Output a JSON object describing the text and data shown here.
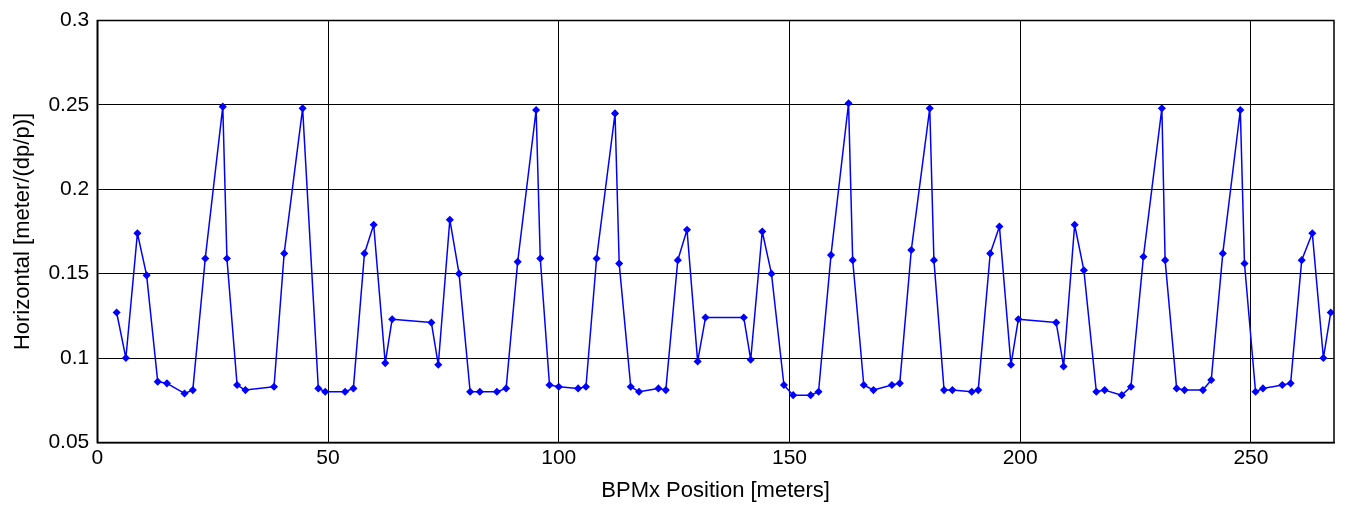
{
  "chart_data": {
    "type": "line",
    "xlabel": "BPMx Position [meters]",
    "ylabel": "Horizontal [meter/(dp/p)]",
    "xlim": [
      0,
      268
    ],
    "xticks": [
      0,
      50,
      100,
      150,
      200,
      250
    ],
    "ylim": [
      0.05,
      0.3
    ],
    "yticks": [
      0.05,
      0.1,
      0.15,
      0.2,
      0.25,
      0.3
    ],
    "grid": true,
    "marker": "diamond",
    "line_style": "solid",
    "series": [
      {
        "color": "#0000ff",
        "x": [
          4.2,
          6.2,
          8.7,
          10.7,
          13.1,
          15.1,
          18.9,
          20.7,
          23.4,
          27.2,
          28.1,
          30.3,
          32.1,
          38.3,
          40.5,
          44.5,
          47.9,
          49.4,
          53.7,
          55.5,
          57.9,
          59.9,
          62.4,
          63.9,
          72.4,
          73.9,
          76.4,
          78.4,
          80.8,
          82.9,
          86.6,
          88.6,
          91.1,
          95.1,
          96.0,
          98.0,
          100.0,
          104.2,
          105.9,
          108.2,
          112.2,
          113.1,
          115.6,
          117.4,
          121.6,
          123.2,
          125.8,
          127.8,
          130.1,
          131.8,
          140.1,
          141.6,
          144.1,
          146.1,
          148.8,
          150.8,
          154.6,
          156.3,
          159.0,
          162.8,
          163.7,
          166.1,
          168.2,
          172.2,
          173.9,
          176.4,
          180.4,
          181.3,
          183.5,
          185.3,
          189.5,
          190.9,
          193.5,
          195.5,
          198.0,
          199.6,
          207.8,
          209.4,
          211.8,
          213.8,
          216.5,
          218.3,
          222.0,
          224.0,
          226.7,
          230.7,
          231.4,
          233.9,
          235.6,
          239.6,
          241.4,
          243.9,
          247.7,
          248.6,
          251.0,
          252.6,
          256.8,
          258.6,
          261.0,
          263.3,
          265.7,
          267.3
        ],
        "values": [
          0.127,
          0.1,
          0.174,
          0.149,
          0.086,
          0.085,
          0.079,
          0.081,
          0.159,
          0.249,
          0.159,
          0.084,
          0.081,
          0.083,
          0.162,
          0.248,
          0.082,
          0.08,
          0.08,
          0.082,
          0.162,
          0.179,
          0.097,
          0.123,
          0.121,
          0.096,
          0.182,
          0.15,
          0.08,
          0.08,
          0.08,
          0.082,
          0.157,
          0.247,
          0.159,
          0.084,
          0.083,
          0.082,
          0.083,
          0.159,
          0.245,
          0.156,
          0.083,
          0.08,
          0.082,
          0.081,
          0.158,
          0.176,
          0.098,
          0.124,
          0.124,
          0.099,
          0.175,
          0.15,
          0.084,
          0.078,
          0.078,
          0.08,
          0.161,
          0.251,
          0.158,
          0.084,
          0.081,
          0.084,
          0.085,
          0.164,
          0.248,
          0.158,
          0.081,
          0.081,
          0.08,
          0.081,
          0.162,
          0.178,
          0.096,
          0.123,
          0.121,
          0.095,
          0.179,
          0.152,
          0.08,
          0.081,
          0.078,
          0.083,
          0.16,
          0.248,
          0.158,
          0.082,
          0.081,
          0.081,
          0.087,
          0.162,
          0.247,
          0.156,
          0.08,
          0.082,
          0.084,
          0.085,
          0.158,
          0.174,
          0.1,
          0.127
        ]
      }
    ]
  }
}
